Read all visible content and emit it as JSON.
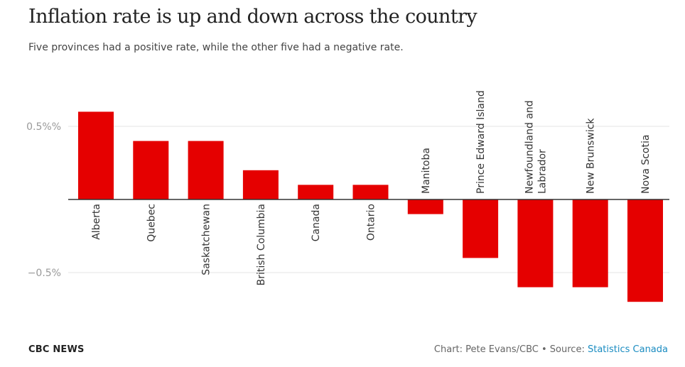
{
  "title": "Inflation rate is up and down across the country",
  "subtitle": "Five provinces had a positive rate, while the other five had a negative rate.",
  "footer": {
    "brand": "CBC NEWS",
    "credit": "Chart: Pete Evans/CBC • Source: ",
    "source": "Statistics Canada"
  },
  "colors": {
    "bar": "#e50000",
    "grid": "#e6e6e6",
    "axis": "#333333",
    "tick_text": "#999999"
  },
  "chart_data": {
    "type": "bar",
    "categories": [
      "Alberta",
      "Quebec",
      "Saskatchewan",
      "British Columbia",
      "Canada",
      "Ontario",
      "Manitoba",
      "Prince Edward Island",
      "Newfoundland and Labrador",
      "New Brunswick",
      "Nova Scotia"
    ],
    "values": [
      0.6,
      0.4,
      0.4,
      0.2,
      0.1,
      0.1,
      -0.1,
      -0.4,
      -0.6,
      -0.6,
      -0.7
    ],
    "title": "Inflation rate is up and down across the country",
    "xlabel": "",
    "ylabel": "",
    "ylim": [
      -0.85,
      0.85
    ],
    "yticks": [
      0.5,
      -0.5
    ],
    "ytick_labels": [
      "0.5%%",
      "−0.5%"
    ],
    "grid": true,
    "legend": "none"
  }
}
